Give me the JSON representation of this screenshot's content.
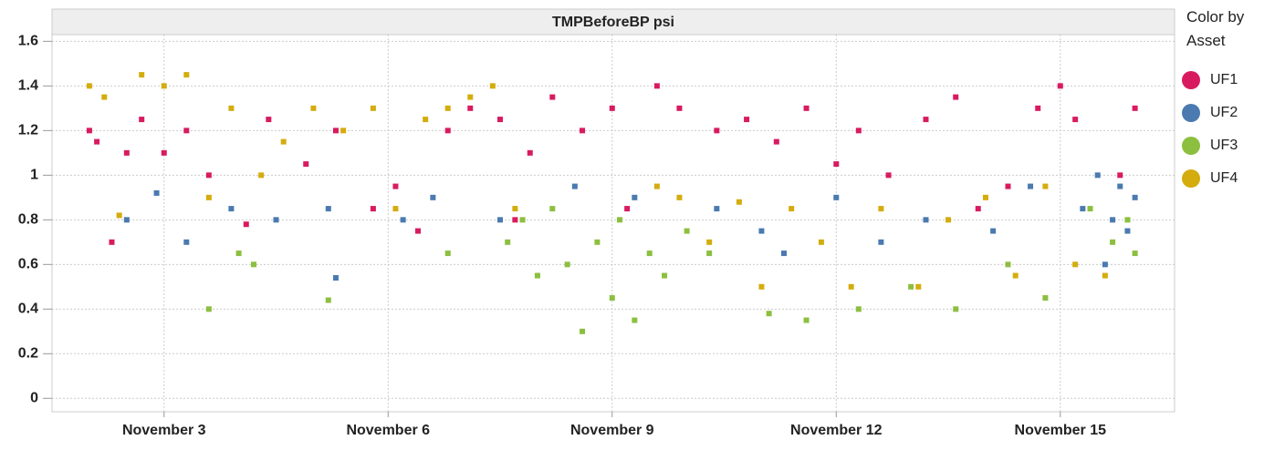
{
  "chart_data": {
    "type": "scatter",
    "title": "TMPBeforeBP  psi",
    "legend_title": "Color by Asset",
    "xlim": [
      1.5,
      16.53
    ],
    "ylim": [
      -0.06,
      1.63
    ],
    "xticks": [
      {
        "value": 3,
        "label": "November 3"
      },
      {
        "value": 6,
        "label": "November 6"
      },
      {
        "value": 9,
        "label": "November 9"
      },
      {
        "value": 12,
        "label": "November 12"
      },
      {
        "value": 15,
        "label": "November 15"
      }
    ],
    "yticks": [
      0,
      0.2,
      0.4,
      0.6,
      0.8,
      1,
      1.2,
      1.4,
      1.6
    ],
    "grid": true,
    "series": [
      {
        "name": "UF1",
        "color": "#d81b60",
        "x": [
          2.0,
          2.1,
          2.3,
          2.5,
          2.7,
          3.0,
          3.3,
          3.6,
          4.1,
          4.4,
          4.9,
          5.3,
          5.8,
          6.1,
          6.4,
          6.8,
          7.1,
          7.5,
          7.7,
          7.9,
          8.2,
          8.6,
          9.0,
          9.2,
          9.6,
          9.9,
          10.4,
          10.8,
          11.2,
          11.6,
          12.0,
          12.3,
          12.7,
          13.2,
          13.6,
          13.9,
          14.3,
          14.7,
          15.0,
          15.2,
          15.8,
          16.0
        ],
        "values": [
          1.2,
          1.15,
          0.7,
          1.1,
          1.25,
          1.1,
          1.2,
          1.0,
          0.78,
          1.25,
          1.05,
          1.2,
          0.85,
          0.95,
          0.75,
          1.2,
          1.3,
          1.25,
          0.8,
          1.1,
          1.35,
          1.2,
          1.3,
          0.85,
          1.4,
          1.3,
          1.2,
          1.25,
          1.15,
          1.3,
          1.05,
          1.2,
          1.0,
          1.25,
          1.35,
          0.85,
          0.95,
          1.3,
          1.4,
          1.25,
          1.0,
          1.3
        ]
      },
      {
        "name": "UF2",
        "color": "#4a7ab0",
        "x": [
          2.5,
          2.9,
          3.3,
          3.9,
          4.5,
          5.2,
          5.3,
          6.2,
          6.6,
          7.5,
          8.5,
          9.3,
          10.4,
          11.0,
          11.3,
          12.0,
          12.6,
          13.2,
          14.1,
          14.6,
          15.3,
          15.5,
          15.7,
          15.8,
          16.0,
          15.9,
          15.6
        ],
        "values": [
          0.8,
          0.92,
          0.7,
          0.85,
          0.8,
          0.85,
          0.54,
          0.8,
          0.9,
          0.8,
          0.95,
          0.9,
          0.85,
          0.75,
          0.65,
          0.9,
          0.7,
          0.8,
          0.75,
          0.95,
          0.85,
          1.0,
          0.8,
          0.95,
          0.9,
          0.75,
          0.6
        ]
      },
      {
        "name": "UF3",
        "color": "#8cbf3f",
        "x": [
          3.6,
          4.0,
          4.2,
          5.2,
          6.8,
          7.6,
          7.8,
          8.0,
          8.2,
          8.4,
          8.6,
          8.8,
          9.0,
          9.1,
          9.3,
          9.5,
          9.7,
          10.0,
          10.3,
          11.1,
          11.6,
          12.3,
          13.0,
          13.6,
          14.3,
          14.8,
          15.4,
          15.7,
          15.9,
          16.0
        ],
        "values": [
          0.4,
          0.65,
          0.6,
          0.44,
          0.65,
          0.7,
          0.8,
          0.55,
          0.85,
          0.6,
          0.3,
          0.7,
          0.45,
          0.8,
          0.35,
          0.65,
          0.55,
          0.75,
          0.65,
          0.38,
          0.35,
          0.4,
          0.5,
          0.4,
          0.6,
          0.45,
          0.85,
          0.7,
          0.8,
          0.65
        ]
      },
      {
        "name": "UF4",
        "color": "#d4ac0d",
        "x": [
          2.0,
          2.2,
          2.4,
          2.7,
          3.0,
          3.3,
          3.6,
          3.9,
          4.3,
          4.6,
          5.0,
          5.4,
          5.8,
          6.1,
          6.5,
          6.8,
          7.1,
          7.4,
          7.7,
          9.6,
          9.9,
          10.3,
          10.7,
          11.0,
          11.4,
          11.8,
          12.2,
          12.6,
          13.1,
          13.5,
          14.0,
          14.4,
          14.8,
          15.2,
          15.6
        ],
        "values": [
          1.4,
          1.35,
          0.82,
          1.45,
          1.4,
          1.45,
          0.9,
          1.3,
          1.0,
          1.15,
          1.3,
          1.2,
          1.3,
          0.85,
          1.25,
          1.3,
          1.35,
          1.4,
          0.85,
          0.95,
          0.9,
          0.7,
          0.88,
          0.5,
          0.85,
          0.7,
          0.5,
          0.85,
          0.5,
          0.8,
          0.9,
          0.55,
          0.95,
          0.6,
          0.55
        ]
      }
    ]
  }
}
